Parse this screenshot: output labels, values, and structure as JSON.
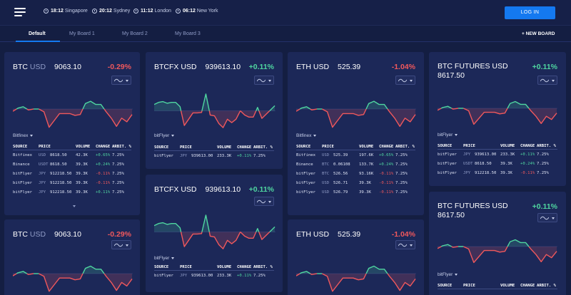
{
  "colors": {
    "up": "#4fd6a0",
    "down": "#f0585c",
    "accent": "#1479f0",
    "background": "#141e42",
    "card": "#1c2858"
  },
  "header": {
    "menu_icon": "hamburger-icon",
    "clocks": [
      {
        "time": "18:12",
        "city": "Singapore"
      },
      {
        "time": "20:12",
        "city": "Sydney"
      },
      {
        "time": "11:12",
        "city": "London"
      },
      {
        "time": "06:12",
        "city": "New York"
      }
    ],
    "login_label": "LOG IN"
  },
  "tabs": [
    "Default",
    "My Board 1",
    "My Board 2",
    "My Board 3"
  ],
  "new_board_label": "+ NEW BOARD",
  "table_headers": [
    "SOURCE",
    "PRICE",
    "VOLUME",
    "CHANGE",
    "ARBIT. %"
  ],
  "cards": [
    {
      "base": "BTC",
      "quote": "USD",
      "price": "9063.10",
      "change": "-0.29%",
      "direction": "down",
      "exchange": "Bitfinex",
      "rows": [
        {
          "source": "Bitfinex",
          "cur": "USD",
          "price": "8618.50",
          "volume": "42.3K",
          "change": "+0.65%",
          "arbit": "7.25%"
        },
        {
          "source": "Binance",
          "cur": "USDT",
          "price": "8618.50",
          "volume": "39.3K",
          "change": "+0.24%",
          "arbit": "7.25%"
        },
        {
          "source": "bitFlyer",
          "cur": "JPY",
          "price": "912218.50",
          "volume": "39.3K",
          "change": "-0.11%",
          "arbit": "7.25%"
        },
        {
          "source": "bitFlyer",
          "cur": "JPY",
          "price": "912218.50",
          "volume": "39.3K",
          "change": "-0.11%",
          "arbit": "7.25%"
        },
        {
          "source": "bitFlyer",
          "cur": "JPY",
          "price": "912218.50",
          "volume": "39.3K",
          "change": "+0.11%",
          "arbit": "7.25%"
        }
      ]
    },
    {
      "base": "BTCFX",
      "quote": "USD",
      "price": "939613.10",
      "change": "+0.11%",
      "direction": "up",
      "exchange": "bitFlyer",
      "rows": [
        {
          "source": "bitFlyer",
          "cur": "JPY",
          "price": "939613.00",
          "volume": "233.3K",
          "change": "+0.11%",
          "arbit": "7.25%"
        }
      ]
    },
    {
      "base": "ETH",
      "quote": "USD",
      "price": "525.39",
      "change": "-1.04%",
      "direction": "down",
      "exchange": "Bitfinex",
      "rows": [
        {
          "source": "Bitfinex",
          "cur": "USD",
          "price": "525.39",
          "volume": "197.6K",
          "change": "+0.65%",
          "arbit": "7.25%"
        },
        {
          "source": "Binance",
          "cur": "BTC",
          "price": "0.06108",
          "volume": "133.7K",
          "change": "+0.24%",
          "arbit": "7.25%"
        },
        {
          "source": "bitFlyer",
          "cur": "BTC",
          "price": "526.56",
          "volume": "93.16K",
          "change": "-0.11%",
          "arbit": "7.25%"
        },
        {
          "source": "bitFlyer",
          "cur": "USD",
          "price": "526.71",
          "volume": "39.3K",
          "change": "-0.11%",
          "arbit": "7.25%"
        },
        {
          "source": "bitFlyer",
          "cur": "USD",
          "price": "526.79",
          "volume": "39.3K",
          "change": "-0.11%",
          "arbit": "7.25%"
        }
      ]
    },
    {
      "base": "BTC FUTURES",
      "quote": "USD",
      "price": "8617.50",
      "change": "+0.11%",
      "direction": "up",
      "exchange": "bitFlyer",
      "rows": [
        {
          "source": "bitFlyer",
          "cur": "JPY",
          "price": "939613.00",
          "volume": "233.3K",
          "change": "+0.11%",
          "arbit": "7.25%"
        },
        {
          "source": "bitFlyer",
          "cur": "USDT",
          "price": "8618.50",
          "volume": "39.3K",
          "change": "+0.24%",
          "arbit": "7.25%"
        },
        {
          "source": "bitFlyer",
          "cur": "JPY",
          "price": "912218.50",
          "volume": "39.3K",
          "change": "-0.11%",
          "arbit": "7.25%"
        }
      ]
    },
    {
      "base": "BTCFX",
      "quote": "USD",
      "price": "939613.10",
      "change": "+0.11%",
      "direction": "up",
      "exchange": "bitFlyer",
      "rows": [
        {
          "source": "bitFlyer",
          "cur": "JPY",
          "price": "939613.00",
          "volume": "233.3K",
          "change": "+0.11%",
          "arbit": "7.25%"
        }
      ]
    },
    {
      "base": "BTC",
      "quote": "USD",
      "price": "9063.10",
      "change": "-0.29%",
      "direction": "down"
    },
    {
      "base": "ETH",
      "quote": "USD",
      "price": "525.39",
      "change": "-1.04%",
      "direction": "down"
    },
    {
      "base": "BTC FUTURES",
      "quote": "USD",
      "price": "8617.50",
      "change": "+0.11%",
      "direction": "up",
      "exchange": "bitFlyer"
    }
  ],
  "sparklines": {
    "A": [
      0.45,
      0.52,
      0.55,
      0.48,
      0.5,
      0.5,
      0.44,
      0.1,
      0.25,
      0.4,
      0.4,
      0.4,
      0.36,
      0.38,
      0.62,
      0.67,
      0.6,
      0.6,
      0.44,
      0.3,
      0.12,
      0.3,
      0.22,
      0.38
    ],
    "B": [
      0.65,
      0.7,
      0.72,
      0.68,
      0.7,
      0.7,
      0.6,
      0.15,
      0.3,
      0.45,
      0.45,
      0.46,
      0.9,
      0.4,
      0.38,
      0.2,
      0.1,
      0.3,
      0.22,
      0.3,
      0.5,
      0.4,
      0.35,
      0.35,
      0.58,
      0.32,
      0.42,
      0.52,
      0.62
    ]
  }
}
